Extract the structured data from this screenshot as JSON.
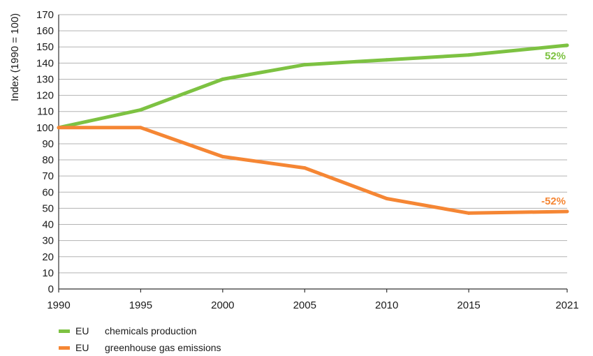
{
  "colors": {
    "chemicals": "#7dc242",
    "emissions": "#f58634",
    "grid": "#b3b3b3",
    "axis": "#333333"
  },
  "chart_data": {
    "type": "line",
    "title": "",
    "xlabel": "",
    "ylabel": "Index (1990 = 100)",
    "x": [
      1990,
      1995,
      2000,
      2005,
      2010,
      2015,
      2021
    ],
    "xlim": [
      1990,
      2021
    ],
    "ylim": [
      0,
      170
    ],
    "y_ticks": [
      0,
      10,
      20,
      30,
      40,
      50,
      60,
      70,
      80,
      90,
      100,
      110,
      120,
      130,
      140,
      150,
      160,
      170
    ],
    "grid": "horizontal",
    "legend_position": "bottom-left",
    "series": [
      {
        "region": "EU",
        "label": "chemicals production",
        "color_key": "chemicals",
        "points": [
          [
            1990,
            100
          ],
          [
            1995,
            111
          ],
          [
            2000,
            130
          ],
          [
            2005,
            139
          ],
          [
            2010,
            142
          ],
          [
            2015,
            145
          ],
          [
            2021,
            151
          ]
        ],
        "end_label": "52%"
      },
      {
        "region": "EU",
        "label": "greenhouse gas emissions",
        "color_key": "emissions",
        "points": [
          [
            1990,
            100
          ],
          [
            1995,
            100
          ],
          [
            2000,
            82
          ],
          [
            2005,
            75
          ],
          [
            2010,
            56
          ],
          [
            2015,
            47
          ],
          [
            2021,
            48
          ]
        ],
        "end_label": "-52%"
      }
    ]
  }
}
